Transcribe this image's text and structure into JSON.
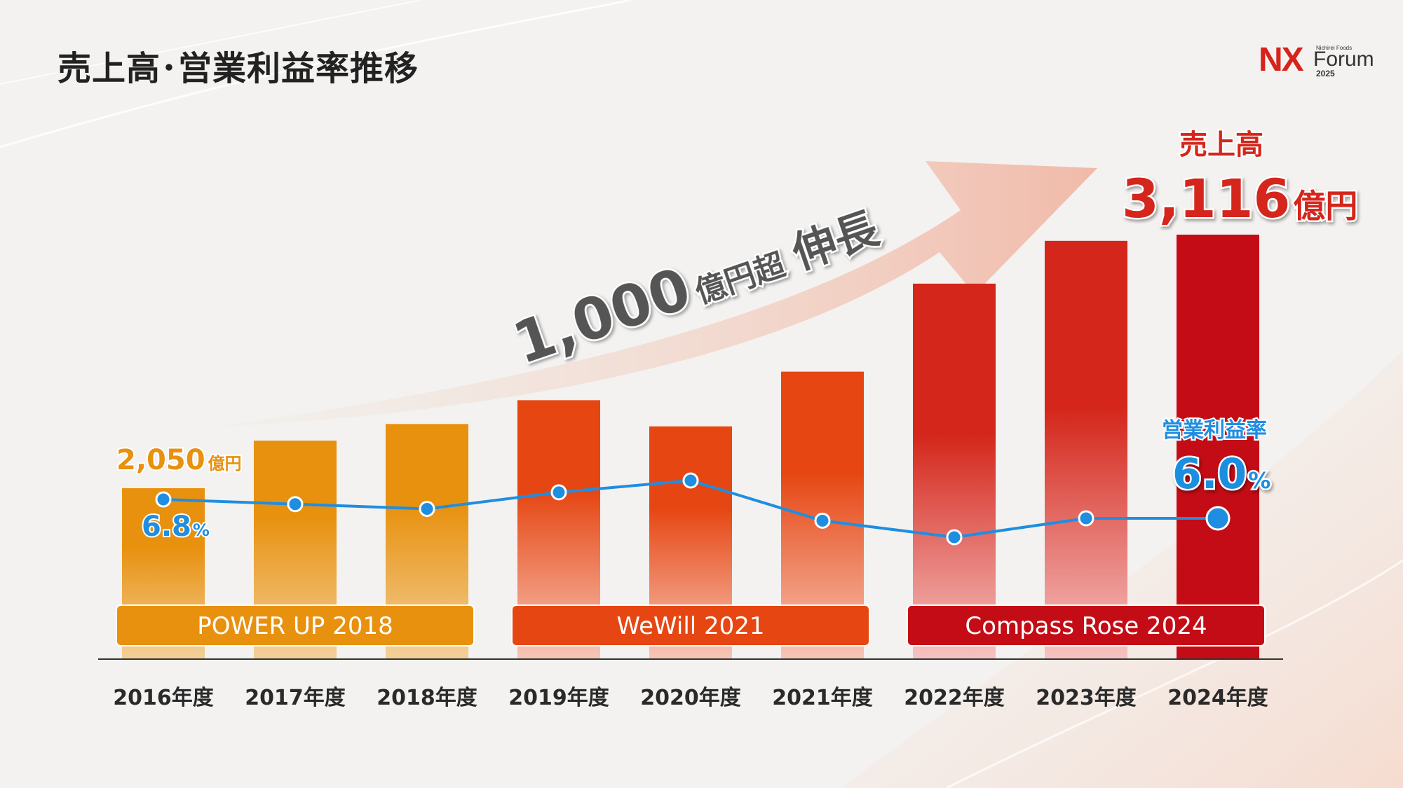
{
  "header": {
    "title": "売上高･営業利益率推移"
  },
  "logo": {
    "mark": "NX",
    "small": "Nichirei Foods",
    "word": "Forum",
    "year": "2025"
  },
  "growth_arrow": {
    "value": "1,000",
    "suffix": "億円超",
    "word": "伸長"
  },
  "first_labels": {
    "sales_value": "2,050",
    "sales_unit": "億円",
    "margin_value": "6.8",
    "margin_unit": "%"
  },
  "last_labels": {
    "sales_title": "売上高",
    "sales_value": "3,116",
    "sales_unit": "億円",
    "margin_title": "営業利益率",
    "margin_value": "6.0",
    "margin_unit": "%"
  },
  "phases": [
    {
      "label": "POWER UP 2018",
      "color": "#e8910f",
      "start": 0,
      "end": 2
    },
    {
      "label": "WeWill 2021",
      "color": "#e64612",
      "start": 3,
      "end": 5
    },
    {
      "label": "Compass Rose 2024",
      "color": "#c30c15",
      "start": 6,
      "end": 8
    }
  ],
  "colors": {
    "orange": "#e8910f",
    "red_orange": "#e64612",
    "red": "#d4261a",
    "dark_red": "#c30c15",
    "line": "#1f8ee0"
  },
  "chart_data": {
    "type": "bar",
    "categories": [
      "2016年度",
      "2017年度",
      "2018年度",
      "2019年度",
      "2020年度",
      "2021年度",
      "2022年度",
      "2023年度",
      "2024年度"
    ],
    "series": [
      {
        "name": "売上高",
        "unit": "億円",
        "values": [
          2050,
          2250,
          2320,
          2420,
          2310,
          2540,
          2910,
          3090,
          3116
        ]
      },
      {
        "name": "営業利益率",
        "unit": "%",
        "type": "line",
        "values": [
          6.8,
          6.6,
          6.4,
          7.1,
          7.6,
          5.9,
          5.2,
          6.0,
          6.0
        ]
      }
    ],
    "ylim": [
      1500,
      3300
    ],
    "y2lim": [
      3.0,
      10.0
    ],
    "grid": false,
    "legend": "none"
  }
}
